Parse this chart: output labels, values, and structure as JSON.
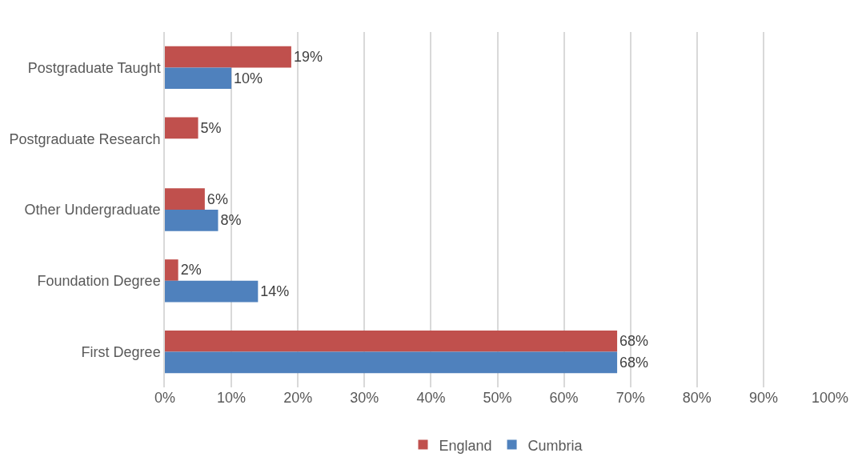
{
  "chart_data": {
    "type": "bar",
    "orientation": "horizontal",
    "categories": [
      "Postgraduate Taught",
      "Postgraduate Research",
      "Other Undergraduate",
      "Foundation Degree",
      "First Degree"
    ],
    "series": [
      {
        "name": "England",
        "color": "#c0504d",
        "values": [
          19,
          5,
          6,
          2,
          68
        ],
        "value_labels": [
          "19%",
          "5%",
          "6%",
          "2%",
          "68%"
        ]
      },
      {
        "name": "Cumbria",
        "color": "#4f81bd",
        "values": [
          10,
          null,
          8,
          14,
          68
        ],
        "value_labels": [
          "10%",
          null,
          "8%",
          "14%",
          "68%"
        ]
      }
    ],
    "xlim": [
      0,
      100
    ],
    "xticks": [
      {
        "value": 0,
        "label": "0%"
      },
      {
        "value": 10,
        "label": "10%"
      },
      {
        "value": 20,
        "label": "20%"
      },
      {
        "value": 30,
        "label": "30%"
      },
      {
        "value": 40,
        "label": "40%"
      },
      {
        "value": 50,
        "label": "50%"
      },
      {
        "value": 60,
        "label": "60%"
      },
      {
        "value": 70,
        "label": "70%"
      },
      {
        "value": 80,
        "label": "80%"
      },
      {
        "value": 90,
        "label": "90%"
      },
      {
        "value": 100,
        "label": "100%"
      }
    ],
    "grid": "x",
    "legend": "bottom"
  }
}
